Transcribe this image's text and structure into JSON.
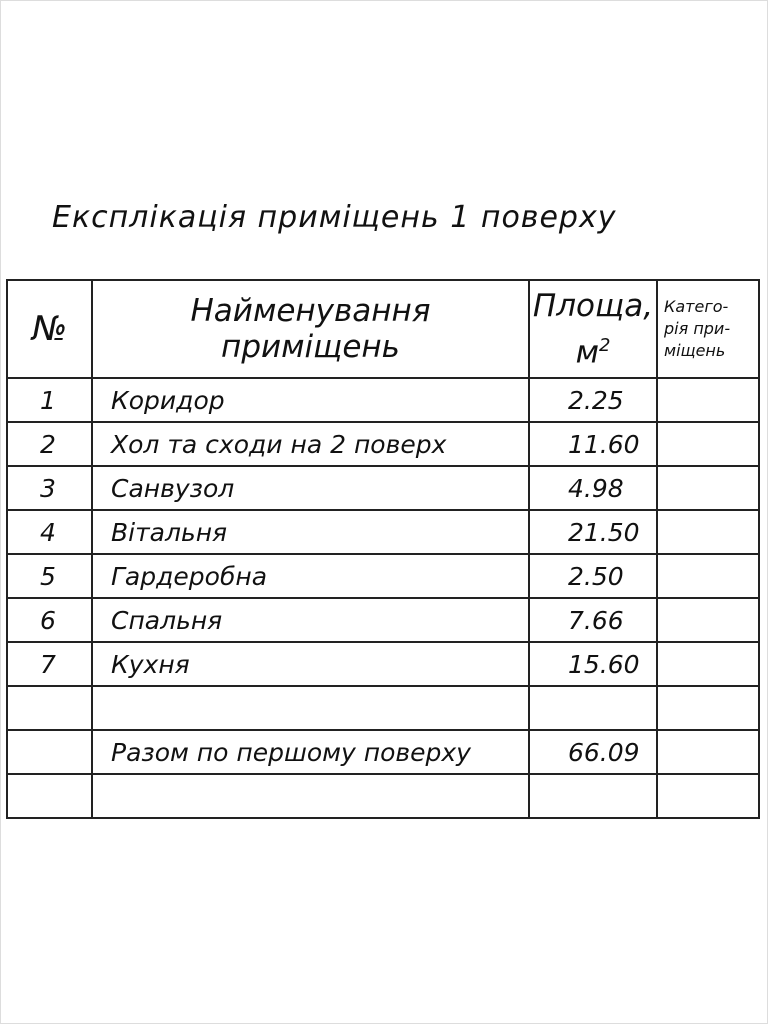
{
  "title": "Експлікація приміщень 1 поверху",
  "headers": {
    "no": "№",
    "name_line1": "Найменування",
    "name_line2": "приміщень",
    "area_line1": "Площа,",
    "area_line2": "м",
    "area_sup": "2",
    "cat_line1": "Катего-",
    "cat_line2": "рія при-",
    "cat_line3": "міщень"
  },
  "rows": [
    {
      "no": "1",
      "name": "Коридор",
      "area": "2.25",
      "category": ""
    },
    {
      "no": "2",
      "name": "Хол та сходи на 2 поверх",
      "area": "11.60",
      "category": ""
    },
    {
      "no": "3",
      "name": "Санвузол",
      "area": "4.98",
      "category": ""
    },
    {
      "no": "4",
      "name": "Вітальня",
      "area": "21.50",
      "category": ""
    },
    {
      "no": "5",
      "name": "Гардеробна",
      "area": "2.50",
      "category": ""
    },
    {
      "no": "6",
      "name": "Спальня",
      "area": "7.66",
      "category": ""
    },
    {
      "no": "7",
      "name": "Кухня",
      "area": "15.60",
      "category": ""
    },
    {
      "no": "",
      "name": "",
      "area": "",
      "category": ""
    },
    {
      "no": "",
      "name": "Разом по першому поверху",
      "area": "66.09",
      "category": ""
    },
    {
      "no": "",
      "name": "",
      "area": "",
      "category": ""
    }
  ]
}
